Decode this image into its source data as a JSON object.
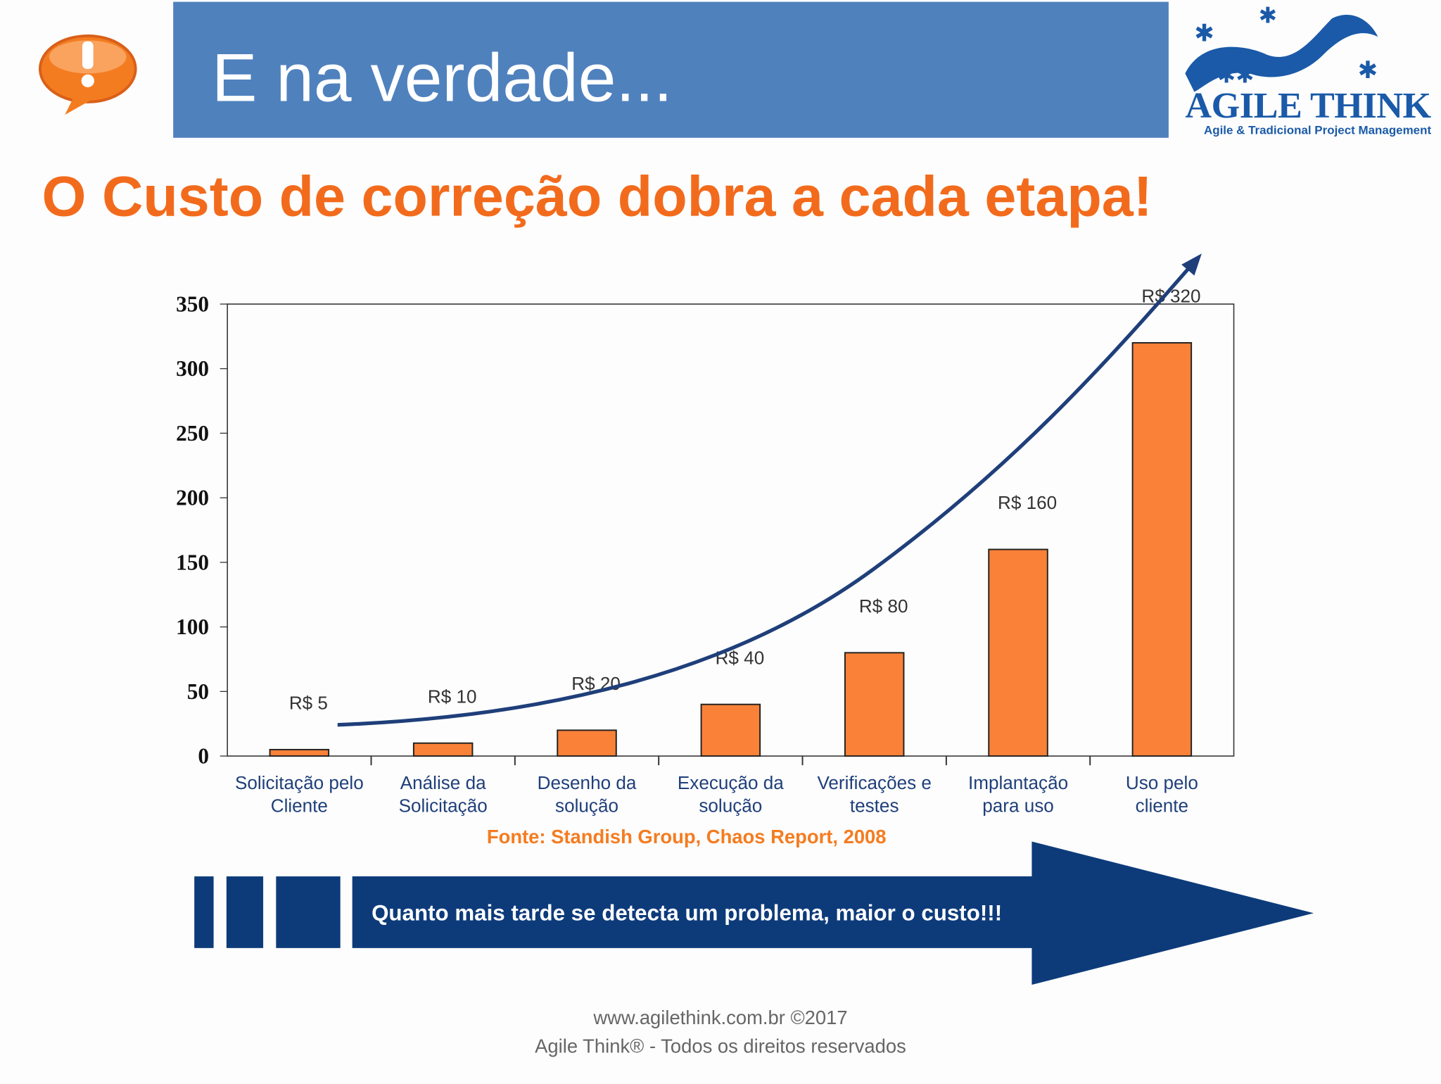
{
  "header": {
    "title": "E na verdade...",
    "logo_name": "AGILE THINK",
    "logo_tagline": "Agile & Tradicional Project Management"
  },
  "chart_data": {
    "type": "bar",
    "title": "O Custo de correção dobra a cada etapa!",
    "categories": [
      "Solicitação pelo\nCliente",
      "Análise da\nSolicitação",
      "Desenho da\nsolução",
      "Execução da\nsolução",
      "Verificações e\ntestes",
      "Implantação\npara uso",
      "Uso pelo\ncliente"
    ],
    "values": [
      5,
      10,
      20,
      40,
      80,
      160,
      320
    ],
    "value_labels": [
      "R$ 5",
      "R$ 10",
      "R$ 20",
      "R$ 40",
      "R$ 80",
      "R$ 160",
      "R$ 320"
    ],
    "color": "#f98138",
    "ylim": [
      0,
      350
    ],
    "yticks": [
      0,
      50,
      100,
      150,
      200,
      250,
      300,
      350
    ],
    "source": "Fonte: Standish Group, Chaos Report, 2008"
  },
  "banner": "Quanto mais tarde se detecta um problema, maior o custo!!!",
  "footer": [
    "www.agilethink.com.br ©2017",
    "Agile Think® - Todos os direitos reservados"
  ]
}
